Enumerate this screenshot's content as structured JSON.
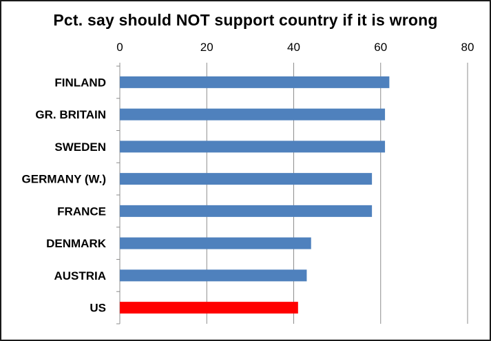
{
  "chart_data": {
    "type": "bar",
    "orientation": "horizontal",
    "title": "Pct. say should NOT support country if it is wrong",
    "xlabel": "",
    "ylabel": "",
    "categories": [
      "FINLAND",
      "GR. BRITAIN",
      "SWEDEN",
      "GERMANY (W.)",
      "FRANCE",
      "DENMARK",
      "AUSTRIA",
      "US"
    ],
    "values": [
      62,
      61,
      61,
      58,
      58,
      44,
      43,
      41
    ],
    "bar_colors": [
      "#4f81bd",
      "#4f81bd",
      "#4f81bd",
      "#4f81bd",
      "#4f81bd",
      "#4f81bd",
      "#4f81bd",
      "#ff0000"
    ],
    "xlim": [
      0,
      80
    ],
    "x_ticks": [
      0,
      20,
      40,
      60,
      80
    ],
    "x_axis_position": "top",
    "grid": "vertical",
    "legend": "none"
  },
  "colors": {
    "default_bar": "#4f81bd",
    "highlight_bar": "#ff0000",
    "gridline": "#8c8c8c",
    "axis": "#8c8c8c"
  }
}
